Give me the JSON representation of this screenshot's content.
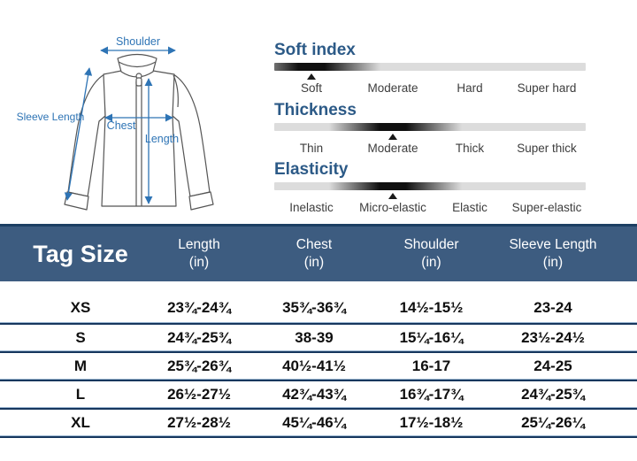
{
  "diagram": {
    "labels": {
      "shoulder": "Shoulder",
      "sleeve_length": "Sleeve Length",
      "chest": "Chest",
      "length": "Length"
    }
  },
  "scales": [
    {
      "title": "Soft index",
      "labels": [
        "Soft",
        "Moderate",
        "Hard",
        "Super hard"
      ],
      "marker_index": 0,
      "marker_at": "Soft"
    },
    {
      "title": "Thickness",
      "labels": [
        "Thin",
        "Moderate",
        "Thick",
        "Super thick"
      ],
      "marker_index": 1,
      "marker_at": "Moderate"
    },
    {
      "title": "Elasticity",
      "labels": [
        "Inelastic",
        "Micro-elastic",
        "Elastic",
        "Super-elastic"
      ],
      "marker_index": 1,
      "marker_at": "Micro-elastic"
    }
  ],
  "table": {
    "title": "Tag Size",
    "columns": [
      {
        "label": "Length",
        "unit": "(in)"
      },
      {
        "label": "Chest",
        "unit": "(in)"
      },
      {
        "label": "Shoulder",
        "unit": "(in)"
      },
      {
        "label": "Sleeve Length",
        "unit": "(in)"
      }
    ],
    "rows": [
      {
        "size": "XS",
        "values": [
          "23¾-24¾",
          "35¾-36¾",
          "14½-15½",
          "23-24"
        ]
      },
      {
        "size": "S",
        "values": [
          "24¾-25¾",
          "38-39",
          "15¼-16¼",
          "23½-24½"
        ]
      },
      {
        "size": "M",
        "values": [
          "25¾-26¾",
          "40½-41½",
          "16-17",
          "24-25"
        ]
      },
      {
        "size": "L",
        "values": [
          "26½-27½",
          "42¾-43¾",
          "16¾-17¾",
          "24¾-25¾"
        ]
      },
      {
        "size": "XL",
        "values": [
          "27½-28½",
          "45¼-46¼",
          "17½-18½",
          "25¼-26¼"
        ]
      }
    ]
  },
  "colors": {
    "table_header_bg": "#3d5c80",
    "table_line_dark": "#17375e",
    "table_line_light": "#9db8d2",
    "scale_title_blue": "#2c5a87",
    "annotation_blue": "#2e74b5",
    "scale_bar_gray": "#dcdcdc"
  }
}
